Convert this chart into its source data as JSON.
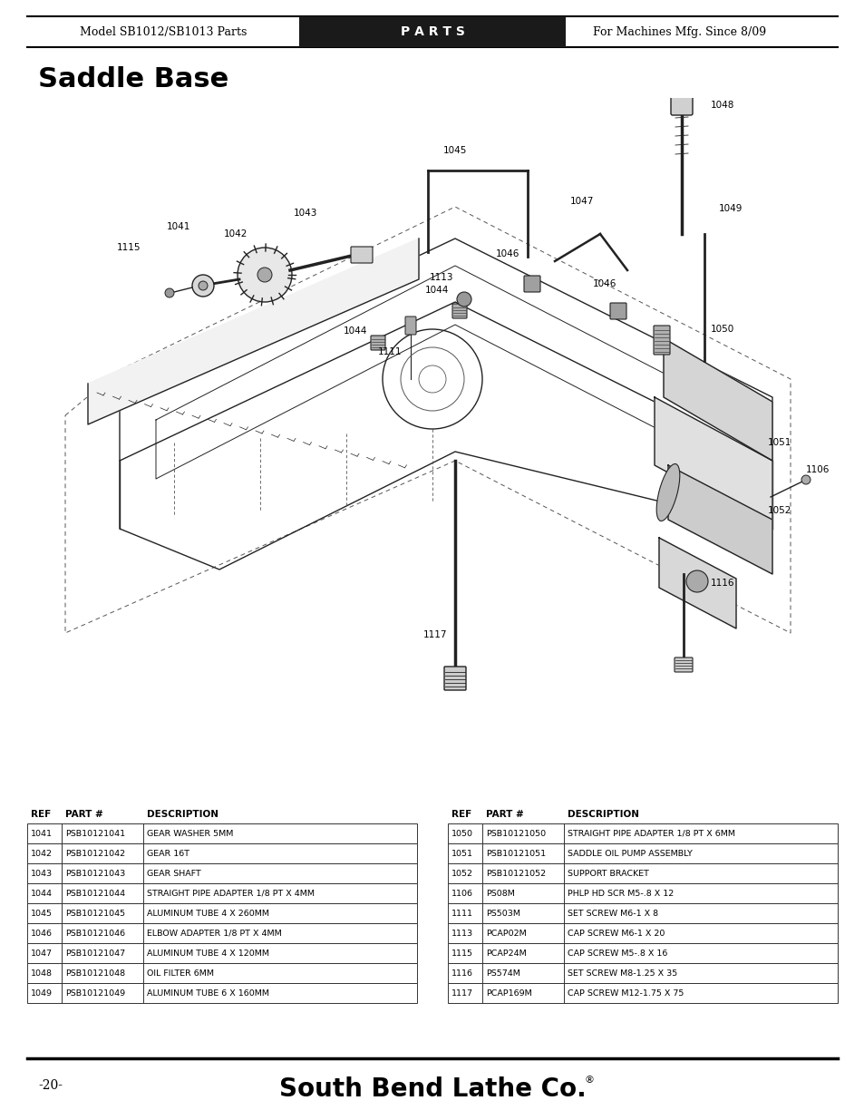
{
  "page_title": "Saddle Base",
  "header_left": "Model SB1012/SB1013 Parts",
  "header_center": "P A R T S",
  "header_right": "For Machines Mfg. Since 8/09",
  "footer_page": "-20-",
  "footer_brand": "South Bend Lathe Co.",
  "footer_trademark": "®",
  "table_left_rows": [
    [
      "1041",
      "PSB10121041",
      "GEAR WASHER 5MM"
    ],
    [
      "1042",
      "PSB10121042",
      "GEAR 16T"
    ],
    [
      "1043",
      "PSB10121043",
      "GEAR SHAFT"
    ],
    [
      "1044",
      "PSB10121044",
      "STRAIGHT PIPE ADAPTER 1/8 PT X 4MM"
    ],
    [
      "1045",
      "PSB10121045",
      "ALUMINUM TUBE 4 X 260MM"
    ],
    [
      "1046",
      "PSB10121046",
      "ELBOW ADAPTER 1/8 PT X 4MM"
    ],
    [
      "1047",
      "PSB10121047",
      "ALUMINUM TUBE 4 X 120MM"
    ],
    [
      "1048",
      "PSB10121048",
      "OIL FILTER 6MM"
    ],
    [
      "1049",
      "PSB10121049",
      "ALUMINUM TUBE 6 X 160MM"
    ]
  ],
  "table_right_rows": [
    [
      "1050",
      "PSB10121050",
      "STRAIGHT PIPE ADAPTER 1/8 PT X 6MM"
    ],
    [
      "1051",
      "PSB10121051",
      "SADDLE OIL PUMP ASSEMBLY"
    ],
    [
      "1052",
      "PSB10121052",
      "SUPPORT BRACKET"
    ],
    [
      "1106",
      "PS08M",
      "PHLP HD SCR M5-.8 X 12"
    ],
    [
      "1111",
      "PS503M",
      "SET SCREW M6-1 X 8"
    ],
    [
      "1113",
      "PCAP02M",
      "CAP SCREW M6-1 X 20"
    ],
    [
      "1115",
      "PCAP24M",
      "CAP SCREW M5-.8 X 16"
    ],
    [
      "1116",
      "PS574M",
      "SET SCREW M8-1.25 X 35"
    ],
    [
      "1117",
      "PCAP169M",
      "CAP SCREW M12-1.75 X 75"
    ]
  ],
  "bg_color": "#ffffff",
  "header_bg": "#1a1a1a",
  "c_main": "#222222",
  "c_dash": "#555555"
}
